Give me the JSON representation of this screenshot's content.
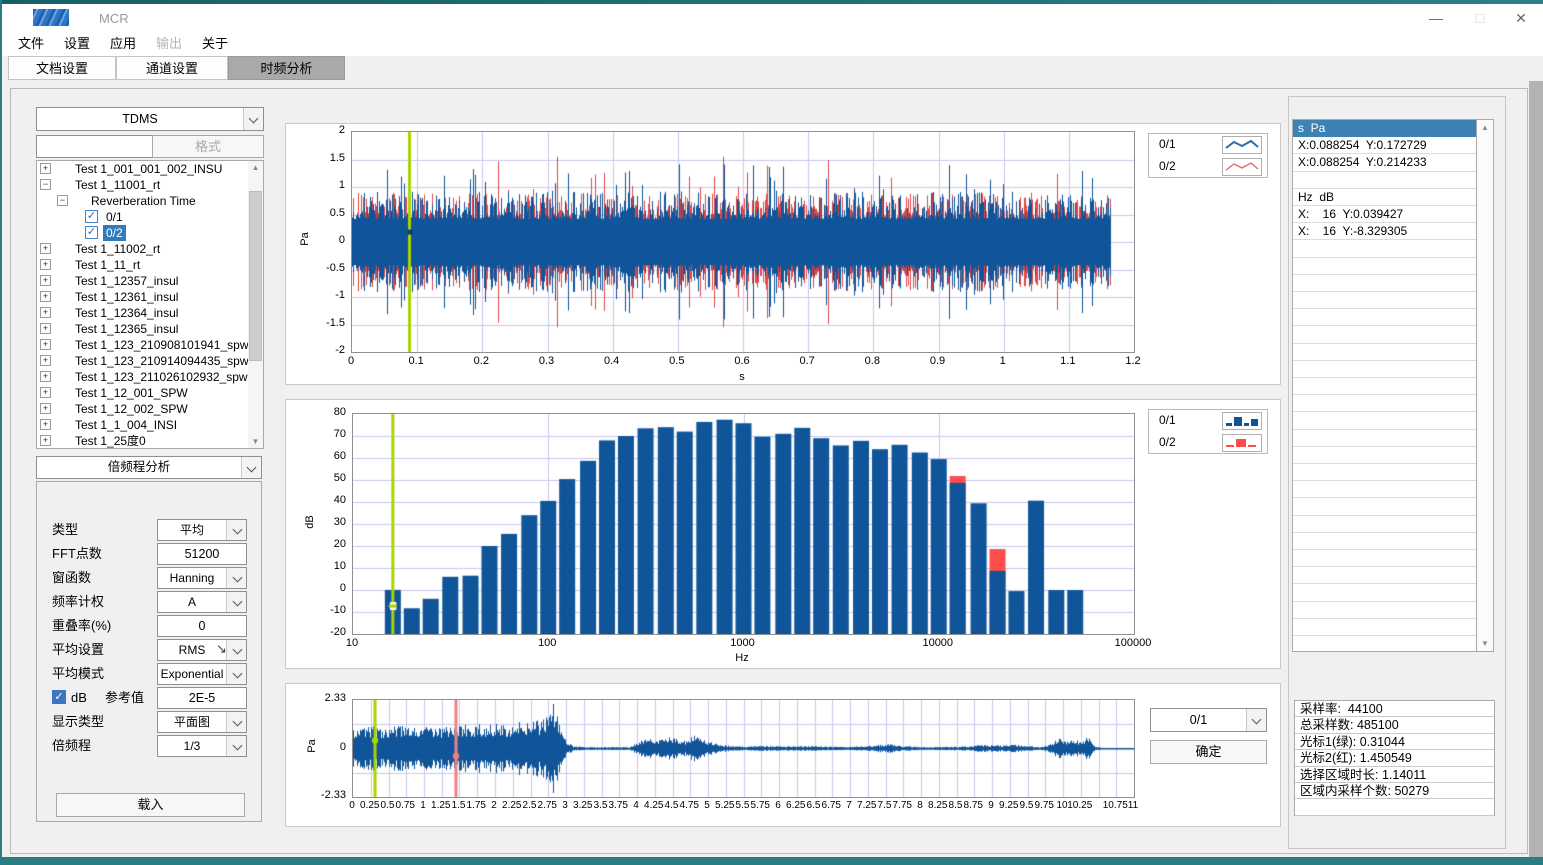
{
  "window": {
    "title": "MCR",
    "controls": {
      "minimize": "—",
      "maximize": "□",
      "close": "✕"
    }
  },
  "menu": {
    "items": [
      {
        "label": "文件",
        "enabled": true
      },
      {
        "label": "设置",
        "enabled": true
      },
      {
        "label": "应用",
        "enabled": true
      },
      {
        "label": "输出",
        "enabled": false
      },
      {
        "label": "关于",
        "enabled": true
      }
    ]
  },
  "tabs": [
    {
      "label": "文档设置",
      "active": false
    },
    {
      "label": "通道设置",
      "active": false
    },
    {
      "label": "时频分析",
      "active": true
    }
  ],
  "file_panel": {
    "format_select": "TDMS",
    "search_value": "",
    "format_button": "格式",
    "tree": [
      {
        "label": "Test 1_001_001_002_INSU",
        "level": 0,
        "expander": "plus"
      },
      {
        "label": "Test 1_11001_rt",
        "level": 0,
        "expander": "minus"
      },
      {
        "label": "Reverberation Time",
        "level": 1,
        "expander": "minus"
      },
      {
        "label": "0/1",
        "level": 2,
        "checkbox": true,
        "checked": true,
        "selected": false
      },
      {
        "label": "0/2",
        "level": 2,
        "checkbox": true,
        "checked": true,
        "selected": true
      },
      {
        "label": "Test 1_11002_rt",
        "level": 0,
        "expander": "plus"
      },
      {
        "label": "Test 1_11_rt",
        "level": 0,
        "expander": "plus"
      },
      {
        "label": "Test 1_12357_insul",
        "level": 0,
        "expander": "plus"
      },
      {
        "label": "Test 1_12361_insul",
        "level": 0,
        "expander": "plus"
      },
      {
        "label": "Test 1_12364_insul",
        "level": 0,
        "expander": "plus"
      },
      {
        "label": "Test 1_12365_insul",
        "level": 0,
        "expander": "plus"
      },
      {
        "label": "Test 1_123_210908101941_spw",
        "level": 0,
        "expander": "plus"
      },
      {
        "label": "Test 1_123_210914094435_spw",
        "level": 0,
        "expander": "plus"
      },
      {
        "label": "Test 1_123_211026102932_spw",
        "level": 0,
        "expander": "plus"
      },
      {
        "label": "Test 1_12_001_SPW",
        "level": 0,
        "expander": "plus"
      },
      {
        "label": "Test 1_12_002_SPW",
        "level": 0,
        "expander": "plus"
      },
      {
        "label": "Test 1_1_004_INSI",
        "level": 0,
        "expander": "plus"
      },
      {
        "label": "Test 1_25度0",
        "level": 0,
        "expander": "plus"
      }
    ]
  },
  "analysis_panel": {
    "analysis_select": "倍频程分析",
    "fields": [
      {
        "type": "select",
        "label": "类型",
        "value": "平均"
      },
      {
        "type": "input",
        "label": "FFT点数",
        "value": "51200"
      },
      {
        "type": "select",
        "label": "窗函数",
        "value": "Hanning"
      },
      {
        "type": "select",
        "label": "频率计权",
        "value": "A"
      },
      {
        "type": "input",
        "label": "重叠率(%)",
        "value": "0"
      },
      {
        "type": "select",
        "label": "平均设置",
        "value": "RMS"
      },
      {
        "type": "select",
        "label": "平均模式",
        "value": "Exponential"
      },
      {
        "type": "check_input",
        "label": "dB",
        "label2": "参考值",
        "checked": true,
        "value": "2E-5"
      },
      {
        "type": "select",
        "label": "显示类型",
        "value": "平面图"
      },
      {
        "type": "select",
        "label": "倍频程",
        "value": "1/3"
      }
    ],
    "load_button": "载入"
  },
  "charts": {
    "time": {
      "type": "line",
      "ylabel": "Pa",
      "xlabel": "s",
      "ylim": [
        -2,
        2
      ],
      "xlim": [
        0,
        1.2
      ],
      "y_ticks": [
        2,
        1.5,
        1,
        0.5,
        0,
        -0.5,
        -1,
        -1.5,
        -2
      ],
      "x_ticks": [
        0,
        0.1,
        0.2,
        0.3,
        0.4,
        0.5,
        0.6,
        0.7,
        0.8,
        0.9,
        1,
        1.1,
        1.2
      ],
      "signal_end": 1.165,
      "series": [
        {
          "name": "0/1",
          "color": "#10559A"
        },
        {
          "name": "0/2",
          "color": "#E04848"
        }
      ],
      "cursor": {
        "x": 0.088254,
        "color": "#A8D400",
        "marker_y": 0.19
      }
    },
    "spectrum": {
      "type": "bar",
      "ylabel": "dB",
      "xlabel": "Hz",
      "ylim": [
        -20,
        80
      ],
      "x_ticks": [
        10,
        100,
        1000,
        10000,
        100000
      ],
      "y_ticks": [
        80,
        70,
        60,
        50,
        40,
        30,
        20,
        10,
        0,
        -10,
        -20
      ],
      "bands": [
        16,
        20,
        25,
        31.5,
        40,
        50,
        63,
        80,
        100,
        125,
        160,
        200,
        250,
        315,
        400,
        500,
        630,
        800,
        1000,
        1250,
        1600,
        2000,
        2500,
        3150,
        4000,
        5000,
        6300,
        8000,
        10000,
        12500,
        16000,
        20000,
        25000,
        31500,
        40000,
        50000
      ],
      "values_0_1": [
        0.04,
        -8.3,
        -4,
        6,
        6.5,
        20,
        25.5,
        34,
        40.5,
        50.4,
        58.7,
        68,
        70,
        73.5,
        74,
        72,
        76.4,
        77.4,
        75.8,
        69.7,
        71,
        73.7,
        69,
        65.7,
        67.8,
        64,
        66,
        62.5,
        59.5,
        48.7,
        39.4,
        8.7,
        -0.5,
        40.6,
        0,
        0
      ],
      "red_overlays": [
        {
          "band": 12500,
          "value": 51.8
        },
        {
          "band": 20000,
          "value": 18.6
        }
      ],
      "series": [
        {
          "name": "0/1",
          "color": "#10559A"
        },
        {
          "name": "0/2",
          "color": "#FF4D4D"
        }
      ],
      "cursor": {
        "x": 16,
        "color": "#A8D400",
        "marker_y": -7.3
      }
    },
    "overview": {
      "type": "line",
      "ylabel": "Pa",
      "ylim": [
        -2.33,
        2.33
      ],
      "xlim": [
        0,
        11
      ],
      "y_ticks": [
        2.33,
        0,
        -2.33
      ],
      "x_ticks": [
        0,
        0.25,
        0.5,
        0.75,
        1,
        1.25,
        1.5,
        1.75,
        2,
        2.25,
        2.5,
        2.75,
        3,
        3.25,
        3.5,
        3.75,
        4,
        4.25,
        4.5,
        4.75,
        5,
        5.25,
        5.5,
        5.75,
        6,
        6.25,
        6.5,
        6.75,
        7,
        7.25,
        7.5,
        7.75,
        8,
        8.25,
        8.5,
        8.75,
        9,
        9.25,
        9.5,
        9.75,
        10,
        10.25,
        10.75,
        11
      ],
      "grid_x_step": 0.25,
      "color": "#10559A",
      "envelope": [
        [
          0,
          1.05
        ],
        [
          0.5,
          1.1
        ],
        [
          1,
          1.05
        ],
        [
          1.5,
          1.15
        ],
        [
          2,
          1.2
        ],
        [
          2.4,
          1.3
        ],
        [
          2.6,
          1.35
        ],
        [
          2.75,
          1.6
        ],
        [
          2.82,
          2.3
        ],
        [
          2.9,
          1.2
        ],
        [
          3.0,
          0.35
        ],
        [
          3.1,
          0.12
        ],
        [
          3.3,
          0.07
        ],
        [
          3.9,
          0.07
        ],
        [
          4.05,
          0.45
        ],
        [
          4.15,
          0.55
        ],
        [
          4.25,
          0.35
        ],
        [
          4.4,
          0.6
        ],
        [
          4.55,
          0.5
        ],
        [
          4.65,
          0.35
        ],
        [
          4.8,
          0.65
        ],
        [
          4.95,
          0.4
        ],
        [
          5.05,
          0.3
        ],
        [
          5.2,
          0.18
        ],
        [
          5.4,
          0.1
        ],
        [
          5.6,
          0.1
        ],
        [
          5.8,
          0.12
        ],
        [
          6.0,
          0.1
        ],
        [
          6.3,
          0.12
        ],
        [
          6.6,
          0.1
        ],
        [
          6.9,
          0.08
        ],
        [
          7.2,
          0.1
        ],
        [
          7.45,
          0.2
        ],
        [
          7.6,
          0.22
        ],
        [
          7.75,
          0.12
        ],
        [
          8.0,
          0.08
        ],
        [
          8.3,
          0.08
        ],
        [
          8.6,
          0.1
        ],
        [
          8.9,
          0.18
        ],
        [
          9.1,
          0.15
        ],
        [
          9.3,
          0.2
        ],
        [
          9.5,
          0.12
        ],
        [
          9.7,
          0.08
        ],
        [
          9.85,
          0.3
        ],
        [
          9.95,
          0.5
        ],
        [
          10.05,
          0.35
        ],
        [
          10.15,
          0.45
        ],
        [
          10.25,
          0.35
        ],
        [
          10.35,
          0.6
        ],
        [
          10.45,
          0.1
        ],
        [
          10.55,
          0.03
        ],
        [
          11,
          0.02
        ]
      ],
      "cursors": [
        {
          "name": "green",
          "x": 0.31044,
          "color": "#A8D400",
          "dot_y": 0.39
        },
        {
          "name": "red",
          "x": 1.450549,
          "color": "#F08080",
          "dot_y": -0.36
        }
      ]
    }
  },
  "legend_time": {
    "entries": [
      {
        "label": "0/1",
        "color": "#2E6DA4",
        "icon": "line"
      },
      {
        "label": "0/2",
        "color": "#E06666",
        "icon": "line"
      }
    ]
  },
  "legend_spectrum": {
    "entries": [
      {
        "label": "0/1",
        "color": "#10559A",
        "icon": "bars"
      },
      {
        "label": "0/2",
        "color": "#FF4D4D",
        "icon": "bars"
      }
    ]
  },
  "readout": {
    "rows": [
      "s  Pa",
      "X:0.088254  Y:0.172729",
      "X:0.088254  Y:0.214233",
      "",
      "Hz  dB",
      "X:    16  Y:0.039427",
      "X:    16  Y:-8.329305"
    ],
    "header_index": 0
  },
  "overview_controls": {
    "channel_select": "0/1",
    "confirm_button": "确定"
  },
  "info_panel": {
    "rows": [
      "采样率:  44100",
      "总采样数: 485100",
      "光标1(绿): 0.31044",
      "光标2(红): 1.450549",
      "选择区域时长: 1.14011",
      "区域内采样个数: 50279"
    ]
  }
}
